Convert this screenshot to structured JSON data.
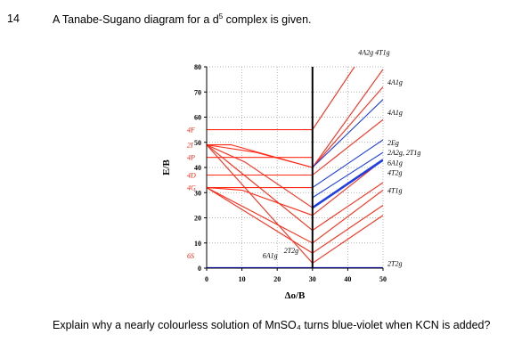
{
  "question": {
    "number": "14",
    "text_before_sup": "A Tanabe-Sugano diagram for a d",
    "superscript": "5",
    "text_after_sup": " complex is given.",
    "prompt_text": "Explain why a nearly colourless solution of MnSO₄ turns blue-violet when KCN is added?"
  },
  "chart_data": {
    "type": "line",
    "title": "",
    "xlabel": "Δo/B",
    "ylabel": "E/B",
    "xlim": [
      0,
      50
    ],
    "ylim": [
      0,
      80
    ],
    "x_ticks": [
      "0",
      "10",
      "20",
      "30",
      "40",
      "50"
    ],
    "y_ticks": [
      "0",
      "10",
      "20",
      "30",
      "40",
      "50",
      "60",
      "70",
      "80"
    ],
    "critical_x": 30,
    "grid": "dotted",
    "colors": {
      "high_spin_ground": "#1010ff",
      "low_spin": "#1f3fe6",
      "excited": "#ff2a16",
      "axis": "#000000"
    },
    "free_ion_terms": [
      {
        "label": "6S",
        "energy": 0
      },
      {
        "label": "4G",
        "energy": 32
      },
      {
        "label": "4D",
        "energy": 37
      },
      {
        "label": "4P",
        "energy": 44
      },
      {
        "label": "2I",
        "energy": 49
      },
      {
        "label": "4F",
        "energy": 55
      }
    ],
    "left_curve_labels": [
      {
        "label": "6A1g",
        "x": 20,
        "y": 4
      },
      {
        "label": "2T2g",
        "x": 26,
        "y": 6
      }
    ],
    "right_term_labels": [
      "4A2g 4T1g",
      "4A1g",
      "4A1g",
      "2Eg",
      "2A2g, 2T1g",
      "6A1g",
      "4T2g",
      "4T1g",
      "2T2g"
    ],
    "series": [
      {
        "color": "blue",
        "points": [
          [
            0,
            0
          ],
          [
            30,
            0
          ],
          [
            50,
            0
          ]
        ]
      },
      {
        "color": "red",
        "points": [
          [
            0,
            55
          ],
          [
            30,
            55
          ],
          [
            50,
            97
          ]
        ]
      },
      {
        "color": "red",
        "points": [
          [
            0,
            49
          ],
          [
            7,
            49
          ],
          [
            30,
            40
          ],
          [
            50,
            79
          ]
        ]
      },
      {
        "color": "red",
        "points": [
          [
            0,
            49
          ],
          [
            14,
            46
          ],
          [
            30,
            40
          ],
          [
            50,
            72
          ]
        ]
      },
      {
        "color": "red",
        "points": [
          [
            0,
            44
          ],
          [
            30,
            44
          ]
        ]
      },
      {
        "color": "red",
        "points": [
          [
            0,
            37
          ],
          [
            30,
            37
          ],
          [
            50,
            59
          ]
        ]
      },
      {
        "color": "red",
        "points": [
          [
            0,
            49
          ],
          [
            11,
            42
          ],
          [
            30,
            24
          ],
          [
            50,
            43
          ]
        ]
      },
      {
        "color": "red",
        "points": [
          [
            0,
            32
          ],
          [
            30,
            32
          ]
        ]
      },
      {
        "color": "red",
        "points": [
          [
            0,
            49
          ],
          [
            30,
            15
          ],
          [
            50,
            34
          ]
        ]
      },
      {
        "color": "red",
        "points": [
          [
            0,
            32
          ],
          [
            10,
            31
          ],
          [
            30,
            21
          ],
          [
            50,
            43
          ]
        ]
      },
      {
        "color": "red",
        "points": [
          [
            0,
            32
          ],
          [
            30,
            10
          ],
          [
            50,
            31
          ]
        ]
      },
      {
        "color": "red",
        "points": [
          [
            0,
            32
          ],
          [
            30,
            6
          ],
          [
            50,
            25
          ]
        ]
      },
      {
        "color": "red",
        "points": [
          [
            0,
            49
          ],
          [
            30,
            2
          ],
          [
            50,
            21
          ]
        ]
      },
      {
        "color": "blue",
        "points": [
          [
            30,
            40
          ],
          [
            50,
            67
          ]
        ]
      },
      {
        "color": "blue",
        "points": [
          [
            30,
            32
          ],
          [
            50,
            51
          ]
        ]
      },
      {
        "color": "blue",
        "points": [
          [
            30,
            28
          ],
          [
            50,
            46
          ]
        ]
      },
      {
        "color": "blue",
        "points": [
          [
            30,
            24
          ],
          [
            50,
            43
          ]
        ],
        "bold": true
      }
    ]
  }
}
